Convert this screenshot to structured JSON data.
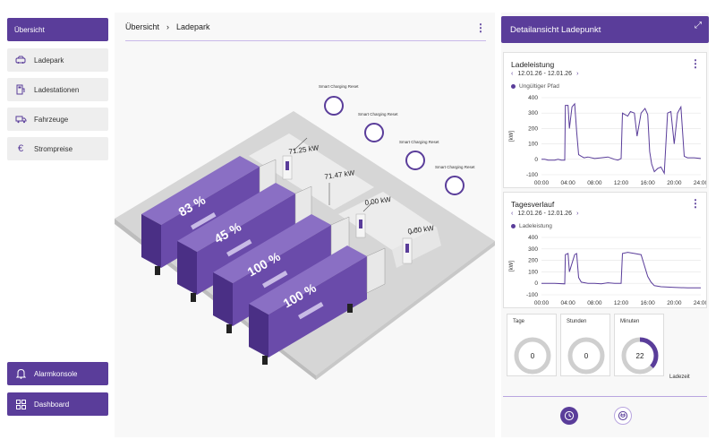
{
  "sidebar": {
    "overview": "Übersicht",
    "items": [
      {
        "label": "Ladepark",
        "icon": "ev-car-icon"
      },
      {
        "label": "Ladestationen",
        "icon": "charging-station-icon"
      },
      {
        "label": "Fahrzeuge",
        "icon": "truck-icon"
      },
      {
        "label": "Strompreise",
        "icon": "euro-icon"
      }
    ],
    "bottom": [
      {
        "label": "Alarmkonsole",
        "icon": "bell-icon"
      },
      {
        "label": "Dashboard",
        "icon": "grid-icon"
      }
    ]
  },
  "breadcrumb": {
    "root": "Übersicht",
    "sep": "›",
    "current": "Ladepark"
  },
  "scene": {
    "trucks": [
      {
        "soc": "83 %"
      },
      {
        "soc": "45 %"
      },
      {
        "soc": "100 %"
      },
      {
        "soc": "100 %"
      }
    ],
    "powers": [
      "71.25 kW",
      "71.47 kW",
      "0.00 kW",
      "0.00 kW"
    ],
    "reset_label": "Smart Charging Reset"
  },
  "detail": {
    "title": "Detailansicht Ladepunkt",
    "chart1": {
      "title": "Ladeleistung",
      "date_range": "12.01.26 - 12.01.26",
      "legend": "Ungültiger Pfad"
    },
    "chart2": {
      "title": "Tagesverlauf",
      "date_range": "12.01.26 - 12.01.26",
      "legend": "Ladeleistung"
    },
    "time": {
      "days_label": "Tage",
      "days": "0",
      "hours_label": "Stunden",
      "hours": "0",
      "minutes_label": "Minuten",
      "minutes": "22",
      "minutes_fraction": 0.37,
      "footer": "Ladezeit"
    }
  },
  "colors": {
    "accent": "#5a3d9a",
    "truck": "#6a4baa"
  },
  "chart_data": [
    {
      "type": "line",
      "title": "Ladeleistung",
      "ylabel": "[kW]",
      "ylim": [
        -100,
        400
      ],
      "yticks": [
        "400",
        "300",
        "200",
        "100",
        "0",
        "-100"
      ],
      "xticks": [
        "00:00",
        "04:00",
        "08:00",
        "12:00",
        "16:00",
        "20:00",
        "24:00"
      ],
      "x": [
        0,
        0.5,
        1,
        1.5,
        2,
        2.5,
        3,
        3.5,
        3.6,
        4,
        4.2,
        4.6,
        5,
        5.3,
        5.6,
        6,
        6.4,
        7,
        8,
        9,
        10,
        11,
        11.5,
        12,
        12.2,
        12.6,
        13,
        13.4,
        14,
        14.4,
        15,
        15.6,
        16,
        16.3,
        16.6,
        17,
        17.5,
        18,
        18.5,
        19,
        19.5,
        20,
        20.5,
        21,
        21.5,
        22,
        23,
        24
      ],
      "values": [
        0,
        0,
        -5,
        -5,
        -5,
        0,
        -5,
        -5,
        350,
        350,
        200,
        340,
        360,
        180,
        30,
        20,
        10,
        15,
        5,
        10,
        15,
        0,
        -5,
        5,
        300,
        290,
        280,
        310,
        300,
        150,
        300,
        330,
        290,
        50,
        -30,
        -80,
        -60,
        -50,
        -90,
        300,
        310,
        100,
        300,
        340,
        20,
        10,
        10,
        5
      ]
    },
    {
      "type": "line",
      "title": "Tagesverlauf",
      "ylabel": "[kW]",
      "ylim": [
        -100,
        400
      ],
      "yticks": [
        "400",
        "300",
        "200",
        "100",
        "0",
        "-100"
      ],
      "xticks": [
        "00:00",
        "04:00",
        "08:00",
        "12:00",
        "16:00",
        "20:00",
        "24:00"
      ],
      "x": [
        0,
        2,
        3.5,
        3.6,
        4,
        4.2,
        5,
        5.3,
        5.6,
        6,
        7,
        8,
        9,
        10,
        11,
        12,
        12.2,
        13,
        14,
        15,
        16,
        16.5,
        17,
        18,
        20,
        22,
        24
      ],
      "values": [
        0,
        0,
        -5,
        250,
        260,
        100,
        250,
        260,
        50,
        10,
        0,
        0,
        -5,
        5,
        0,
        0,
        260,
        270,
        260,
        250,
        60,
        10,
        -20,
        -30,
        -35,
        -40,
        -40
      ]
    }
  ]
}
